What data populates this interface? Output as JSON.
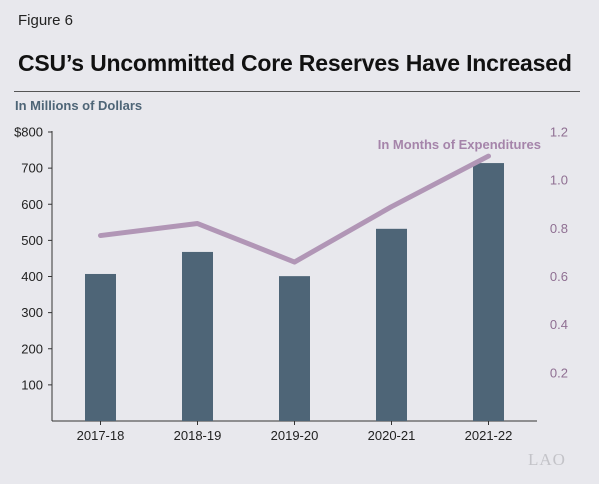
{
  "figure_label": "Figure 6",
  "title": "CSU’s Uncommitted Core Reserves Have Increased",
  "units_label": "In Millions of Dollars",
  "logo_text": "LAO",
  "colors": {
    "bar": "#4e6577",
    "line": "#b196b6",
    "background": "#e8e8ed"
  },
  "chart_data": {
    "type": "bar",
    "categories": [
      "2017-18",
      "2018-19",
      "2019-20",
      "2020-21",
      "2021-22"
    ],
    "series": [
      {
        "type": "bar",
        "axis": "left",
        "values": [
          407,
          468,
          401,
          532,
          714
        ]
      },
      {
        "name": "In Months of Expenditures",
        "type": "line",
        "axis": "right",
        "values": [
          0.77,
          0.82,
          0.66,
          0.89,
          1.1
        ]
      }
    ],
    "ylim_left": [
      0,
      800
    ],
    "yticks_left": [
      "100",
      "200",
      "300",
      "400",
      "500",
      "600",
      "700",
      "$800"
    ],
    "ylim_right": [
      0,
      1.2
    ],
    "yticks_right": [
      "0.2",
      "0.4",
      "0.6",
      "0.8",
      "1.0",
      "1.2"
    ],
    "grid": false
  }
}
